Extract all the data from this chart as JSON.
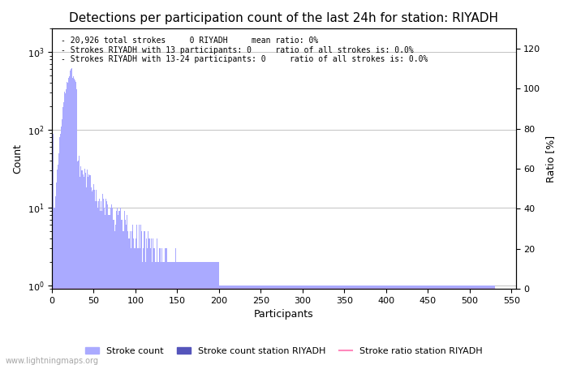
{
  "title": "Detections per participation count of the last 24h for station: RIYADH",
  "xlabel": "Participants",
  "ylabel_left": "Count",
  "ylabel_right": "Ratio [%]",
  "annotation_lines": [
    "- 20,926 total strokes     0 RIYADH     mean ratio: 0%",
    "- Strokes RIYADH with 13 participants: 0     ratio of all strokes is: 0.0%",
    "- Strokes RIYADH with 13-24 participants: 0     ratio of all strokes is: 0.0%"
  ],
  "bar_color_light": "#aaaaff",
  "bar_color_dark": "#5555bb",
  "ratio_line_color": "#ff88bb",
  "background_color": "#ffffff",
  "grid_color": "#aaaaaa",
  "title_fontsize": 11,
  "legend_labels": [
    "Stroke count",
    "Stroke count station RIYADH",
    "Stroke ratio station RIYADH"
  ],
  "watermark": "www.lightningmaps.org",
  "xlim": [
    0,
    550
  ],
  "right_yticks": [
    0,
    20,
    40,
    60,
    80,
    100,
    120
  ],
  "xticks": [
    0,
    50,
    100,
    150,
    200,
    250,
    300,
    350,
    400,
    450,
    500,
    550
  ]
}
